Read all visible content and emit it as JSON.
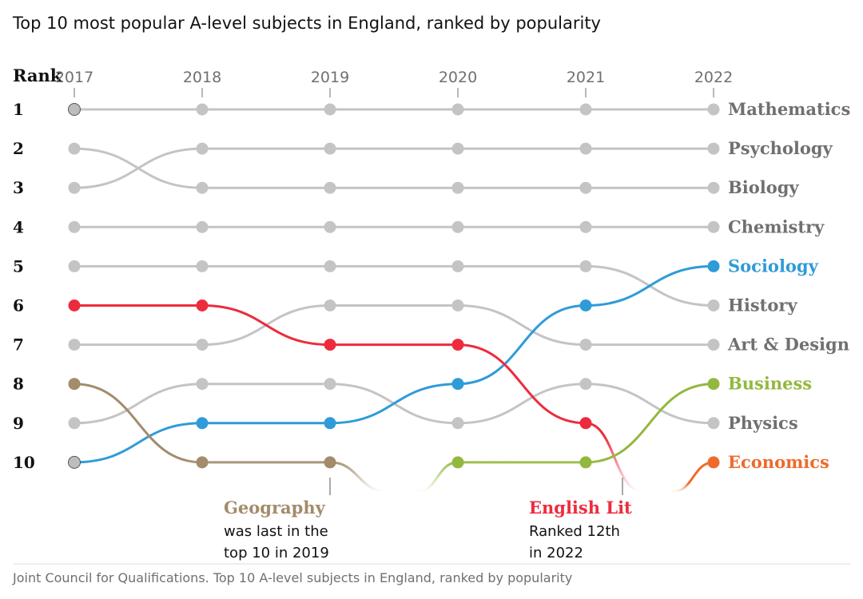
{
  "title": "Top 10 most popular A-level subjects in England, ranked by popularity",
  "source": "Joint Council for Qualifications. Top 10 A-level subjects in England, ranked by popularity",
  "chart_data": {
    "type": "bump",
    "rank_header": "Rank",
    "years": [
      "2017",
      "2018",
      "2019",
      "2020",
      "2021",
      "2022"
    ],
    "ranks": [
      "1",
      "2",
      "3",
      "4",
      "5",
      "6",
      "7",
      "8",
      "9",
      "10"
    ],
    "series": [
      {
        "name": "Mathematics",
        "ranks": [
          1,
          1,
          1,
          1,
          1,
          1
        ],
        "color": "#c4c4c4",
        "label_color": "#707070",
        "labeled": true
      },
      {
        "name": "Psychology",
        "ranks": [
          3,
          2,
          2,
          2,
          2,
          2
        ],
        "color": "#c4c4c4",
        "label_color": "#707070",
        "labeled": true
      },
      {
        "name": "Biology",
        "ranks": [
          2,
          3,
          3,
          3,
          3,
          3
        ],
        "color": "#c4c4c4",
        "label_color": "#707070",
        "labeled": true
      },
      {
        "name": "Chemistry",
        "ranks": [
          4,
          4,
          4,
          4,
          4,
          4
        ],
        "color": "#c4c4c4",
        "label_color": "#707070",
        "labeled": true
      },
      {
        "name": "History",
        "ranks": [
          5,
          5,
          5,
          5,
          5,
          6
        ],
        "color": "#c4c4c4",
        "label_color": "#707070",
        "labeled": true
      },
      {
        "name": "Art & Design",
        "ranks": [
          7,
          7,
          6,
          6,
          7,
          7
        ],
        "color": "#c4c4c4",
        "label_color": "#707070",
        "labeled": true
      },
      {
        "name": "Physics",
        "ranks": [
          9,
          8,
          8,
          9,
          8,
          9
        ],
        "color": "#c4c4c4",
        "label_color": "#707070",
        "labeled": true
      },
      {
        "name": "Sociology",
        "ranks": [
          10,
          9,
          9,
          8,
          6,
          5
        ],
        "color": "#2f9bd8",
        "label_color": "#2f9bd8",
        "labeled": true
      },
      {
        "name": "English Lit",
        "ranks": [
          6,
          6,
          7,
          7,
          9,
          null
        ],
        "color": "#ec2c3c",
        "label_color": "#ec2c3c",
        "labeled": false
      },
      {
        "name": "Geography",
        "ranks": [
          8,
          10,
          10,
          null,
          null,
          null
        ],
        "color": "#a38b6b",
        "label_color": "#a38b6b",
        "labeled": false
      },
      {
        "name": "Business",
        "ranks": [
          null,
          null,
          null,
          10,
          10,
          8
        ],
        "color": "#93b83f",
        "label_color": "#93b83f",
        "labeled": true
      },
      {
        "name": "Economics",
        "ranks": [
          null,
          null,
          null,
          null,
          null,
          10
        ],
        "color": "#ee6a2c",
        "label_color": "#ee6a2c",
        "labeled": true
      }
    ],
    "annotations": [
      {
        "title": "Geography",
        "lines": [
          "was last in the",
          "top 10 in 2019"
        ],
        "color": "#a38b6b"
      },
      {
        "title": "English Lit",
        "lines": [
          "Ranked 12th",
          "in 2022"
        ],
        "color": "#ec2c3c"
      }
    ]
  }
}
